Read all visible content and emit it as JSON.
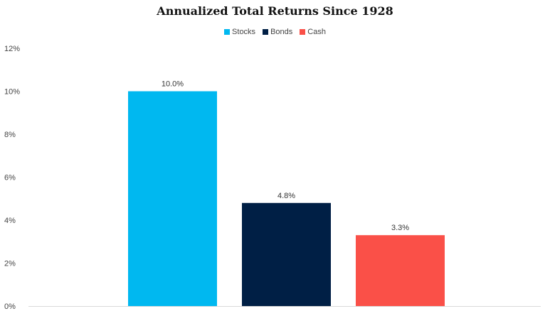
{
  "chart_data": {
    "type": "bar",
    "title": "Annualized Total Returns Since 1928",
    "xlabel": "",
    "ylabel": "",
    "categories": [
      "Stocks",
      "Bonds",
      "Cash"
    ],
    "values": [
      10.0,
      4.8,
      3.3
    ],
    "value_labels": [
      "10.0%",
      "4.8%",
      "3.3%"
    ],
    "colors": [
      "#00b8f0",
      "#001f45",
      "#fa5048"
    ],
    "ylim": [
      0,
      12
    ],
    "yticks": [
      0,
      2,
      4,
      6,
      8,
      10,
      12
    ],
    "ytick_labels": [
      "0%",
      "2%",
      "4%",
      "6%",
      "8%",
      "10%",
      "12%"
    ],
    "grid": false,
    "legend": {
      "placement": "top-center",
      "entries": [
        "Stocks",
        "Bonds",
        "Cash"
      ]
    }
  }
}
